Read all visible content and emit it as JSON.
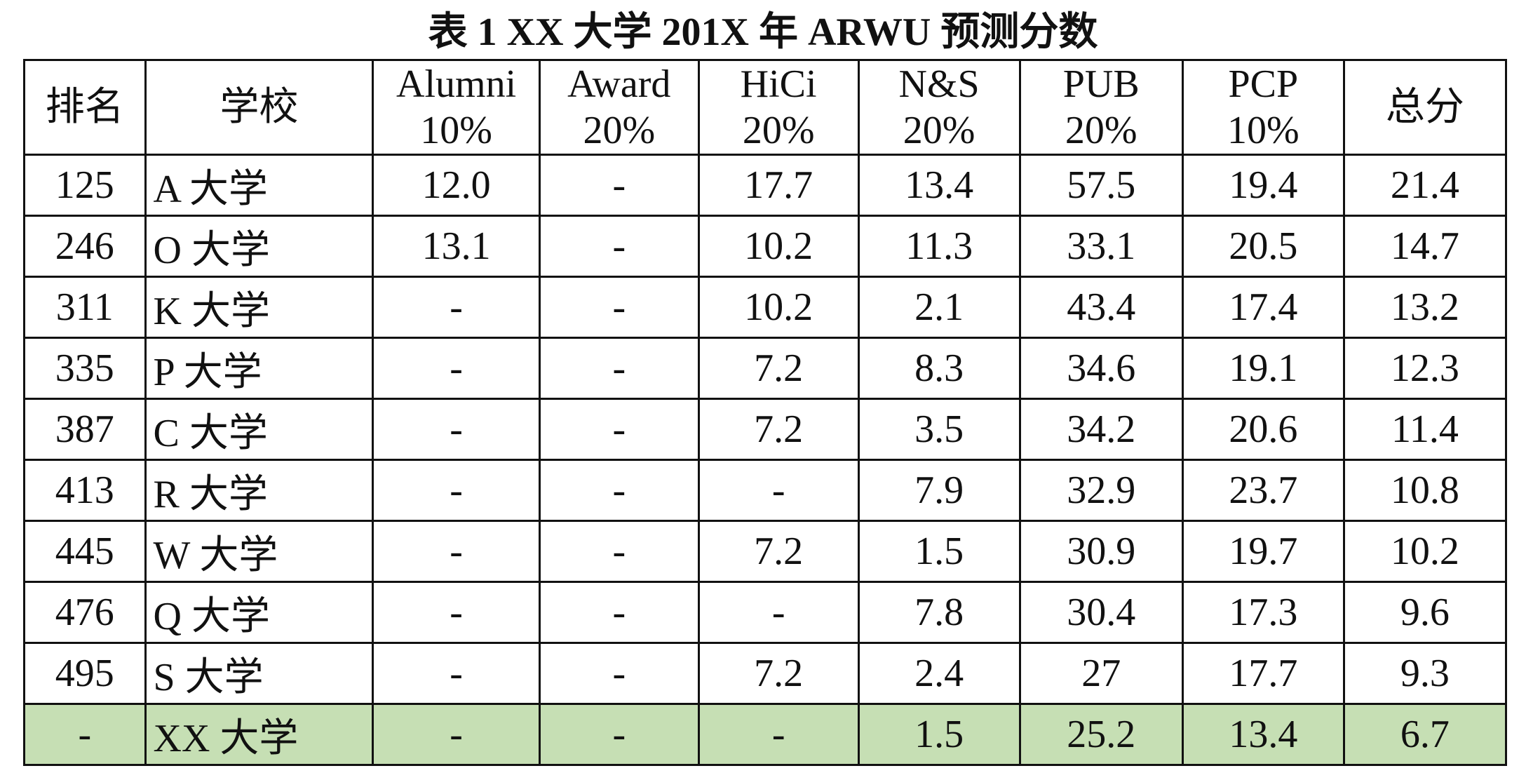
{
  "title": "表 1 XX 大学 201X 年 ARWU 预测分数",
  "columns": {
    "rank": "排名",
    "school": "学校",
    "alumni": {
      "name": "Alumni",
      "weight": "10%"
    },
    "award": {
      "name": "Award",
      "weight": "20%"
    },
    "hici": {
      "name": "HiCi",
      "weight": "20%"
    },
    "ns": {
      "name": "N&S",
      "weight": "20%"
    },
    "pub": {
      "name": "PUB",
      "weight": "20%"
    },
    "pcp": {
      "name": "PCP",
      "weight": "10%"
    },
    "total": "总分"
  },
  "rows": [
    {
      "rank": "125",
      "school": "A 大学",
      "alumni": "12.0",
      "award": "-",
      "hici": "17.7",
      "ns": "13.4",
      "pub": "57.5",
      "pcp": "19.4",
      "total": "21.4"
    },
    {
      "rank": "246",
      "school": "O 大学",
      "alumni": "13.1",
      "award": "-",
      "hici": "10.2",
      "ns": "11.3",
      "pub": "33.1",
      "pcp": "20.5",
      "total": "14.7"
    },
    {
      "rank": "311",
      "school": "K 大学",
      "alumni": "-",
      "award": "-",
      "hici": "10.2",
      "ns": "2.1",
      "pub": "43.4",
      "pcp": "17.4",
      "total": "13.2"
    },
    {
      "rank": "335",
      "school": "P 大学",
      "alumni": "-",
      "award": "-",
      "hici": "7.2",
      "ns": "8.3",
      "pub": "34.6",
      "pcp": "19.1",
      "total": "12.3"
    },
    {
      "rank": "387",
      "school": "C 大学",
      "alumni": "-",
      "award": "-",
      "hici": "7.2",
      "ns": "3.5",
      "pub": "34.2",
      "pcp": "20.6",
      "total": "11.4"
    },
    {
      "rank": "413",
      "school": "R 大学",
      "alumni": "-",
      "award": "-",
      "hici": "-",
      "ns": "7.9",
      "pub": "32.9",
      "pcp": "23.7",
      "total": "10.8"
    },
    {
      "rank": "445",
      "school": "W 大学",
      "alumni": "-",
      "award": "-",
      "hici": "7.2",
      "ns": "1.5",
      "pub": "30.9",
      "pcp": "19.7",
      "total": "10.2"
    },
    {
      "rank": "476",
      "school": "Q 大学",
      "alumni": "-",
      "award": "-",
      "hici": "-",
      "ns": "7.8",
      "pub": "30.4",
      "pcp": "17.3",
      "total": "9.6"
    },
    {
      "rank": "495",
      "school": "S 大学",
      "alumni": "-",
      "award": "-",
      "hici": "7.2",
      "ns": "2.4",
      "pub": "27",
      "pcp": "17.7",
      "total": "9.3"
    },
    {
      "rank": "-",
      "school": "XX 大学",
      "alumni": "-",
      "award": "-",
      "hici": "-",
      "ns": "1.5",
      "pub": "25.2",
      "pcp": "13.4",
      "total": "6.7"
    }
  ],
  "highlight_color": "#c6dfb4"
}
